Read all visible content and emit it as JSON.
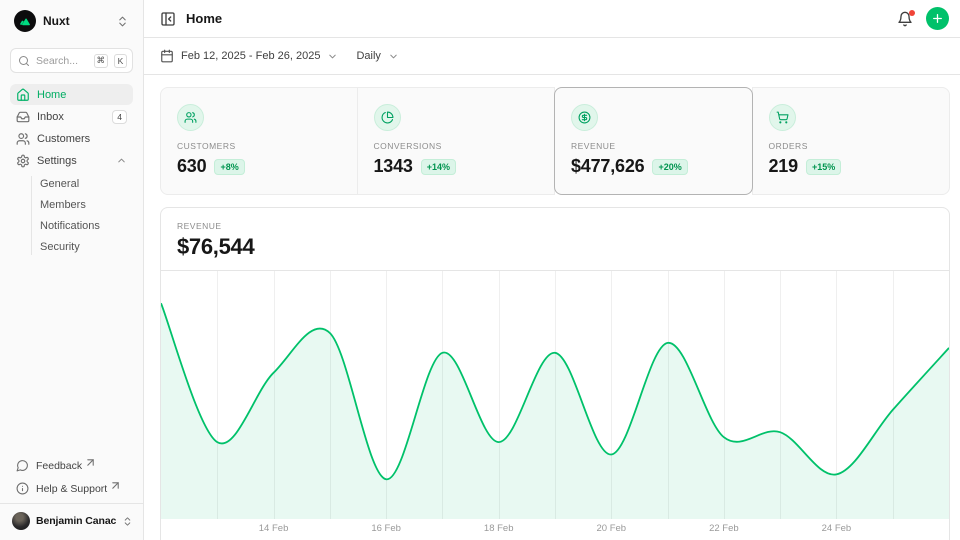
{
  "colors": {
    "primary": "#00c16a",
    "notification_dot": "#f04438"
  },
  "sidebar": {
    "workspace": {
      "name": "Nuxt"
    },
    "search": {
      "placeholder": "Search...",
      "kbd": [
        "⌘",
        "K"
      ]
    },
    "nav": [
      {
        "label": "Home",
        "icon": "home",
        "active": true
      },
      {
        "label": "Inbox",
        "icon": "inbox",
        "badge": "4"
      },
      {
        "label": "Customers",
        "icon": "users"
      },
      {
        "label": "Settings",
        "icon": "settings",
        "expanded": true,
        "children": [
          "General",
          "Members",
          "Notifications",
          "Security"
        ]
      }
    ],
    "footer_nav": [
      {
        "label": "Feedback",
        "icon": "message",
        "external": true
      },
      {
        "label": "Help & Support",
        "icon": "info",
        "external": true
      }
    ],
    "user": {
      "name": "Benjamin Canac"
    }
  },
  "header": {
    "title": "Home"
  },
  "toolbar": {
    "date_range": "Feb 12, 2025 - Feb 26, 2025",
    "period": "Daily"
  },
  "stats": [
    {
      "label": "CUSTOMERS",
      "value": "630",
      "delta": "+8%",
      "icon": "users"
    },
    {
      "label": "CONVERSIONS",
      "value": "1343",
      "delta": "+14%",
      "icon": "pie"
    },
    {
      "label": "REVENUE",
      "value": "$477,626",
      "delta": "+20%",
      "icon": "dollar",
      "selected": true
    },
    {
      "label": "ORDERS",
      "value": "219",
      "delta": "+15%",
      "icon": "cart"
    }
  ],
  "chart_data": {
    "type": "area",
    "label": "REVENUE",
    "current_value": "$76,544",
    "x": [
      "12 Feb",
      "13 Feb",
      "14 Feb",
      "15 Feb",
      "16 Feb",
      "17 Feb",
      "18 Feb",
      "19 Feb",
      "20 Feb",
      "21 Feb",
      "22 Feb",
      "23 Feb",
      "24 Feb",
      "25 Feb",
      "26 Feb"
    ],
    "values": [
      87,
      31,
      59,
      75,
      16,
      67,
      31,
      67,
      26,
      71,
      33,
      35,
      18,
      44,
      69
    ],
    "ylim": [
      0,
      100
    ],
    "y_axis_hidden": true,
    "x_tick_labels": [
      "14 Feb",
      "16 Feb",
      "18 Feb",
      "20 Feb",
      "22 Feb",
      "24 Feb"
    ],
    "grid": "vertical-only",
    "line_color": "#00c16a",
    "fill_color": "rgba(0,193,106,0.09)"
  }
}
